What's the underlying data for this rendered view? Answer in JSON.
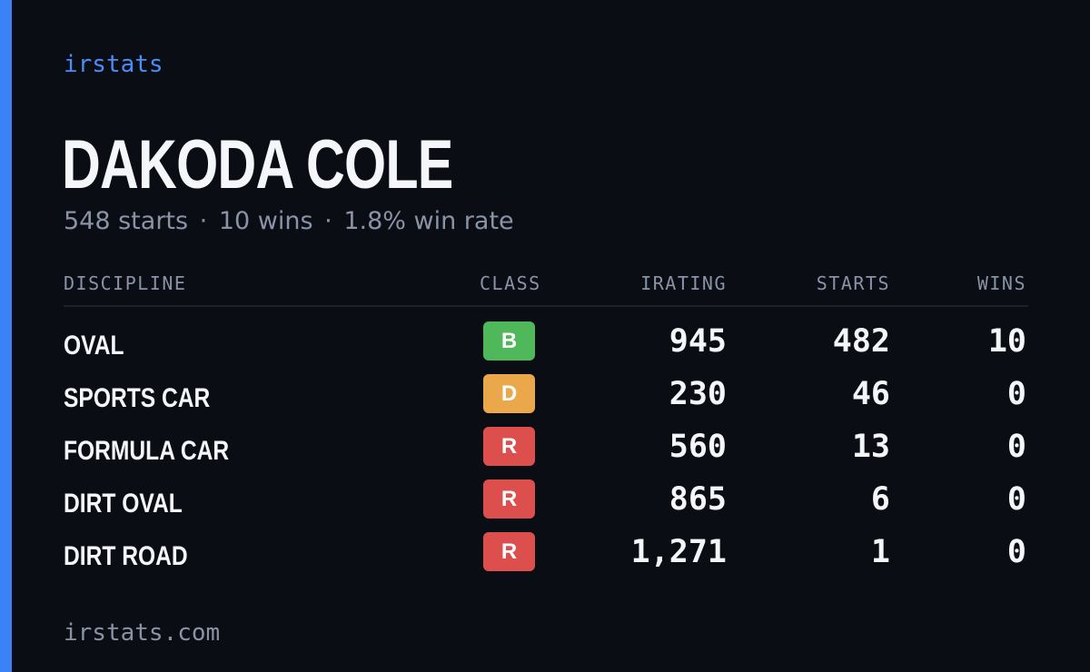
{
  "brand": "irstats",
  "driver": {
    "name": "DAKODA COLE",
    "starts_text": "548 starts",
    "wins_text": "10 wins",
    "win_rate_text": "1.8% win rate",
    "separator": "·"
  },
  "table": {
    "headers": {
      "discipline": "DISCIPLINE",
      "class": "CLASS",
      "irating": "IRATING",
      "starts": "STARTS",
      "wins": "WINS"
    },
    "rows": [
      {
        "discipline": "OVAL",
        "class": "B",
        "class_color": "#4fb85a",
        "irating": "945",
        "starts": "482",
        "wins": "10"
      },
      {
        "discipline": "SPORTS CAR",
        "class": "D",
        "class_color": "#eba84a",
        "irating": "230",
        "starts": "46",
        "wins": "0"
      },
      {
        "discipline": "FORMULA CAR",
        "class": "R",
        "class_color": "#dd4f4c",
        "irating": "560",
        "starts": "13",
        "wins": "0"
      },
      {
        "discipline": "DIRT OVAL",
        "class": "R",
        "class_color": "#dd4f4c",
        "irating": "865",
        "starts": "6",
        "wins": "0"
      },
      {
        "discipline": "DIRT ROAD",
        "class": "R",
        "class_color": "#dd4f4c",
        "irating": "1,271",
        "starts": "1",
        "wins": "0"
      }
    ]
  },
  "footer": "irstats.com",
  "colors": {
    "accent": "#3b82f6",
    "background": "#0a0d14",
    "muted_text": "#8a93a6"
  }
}
